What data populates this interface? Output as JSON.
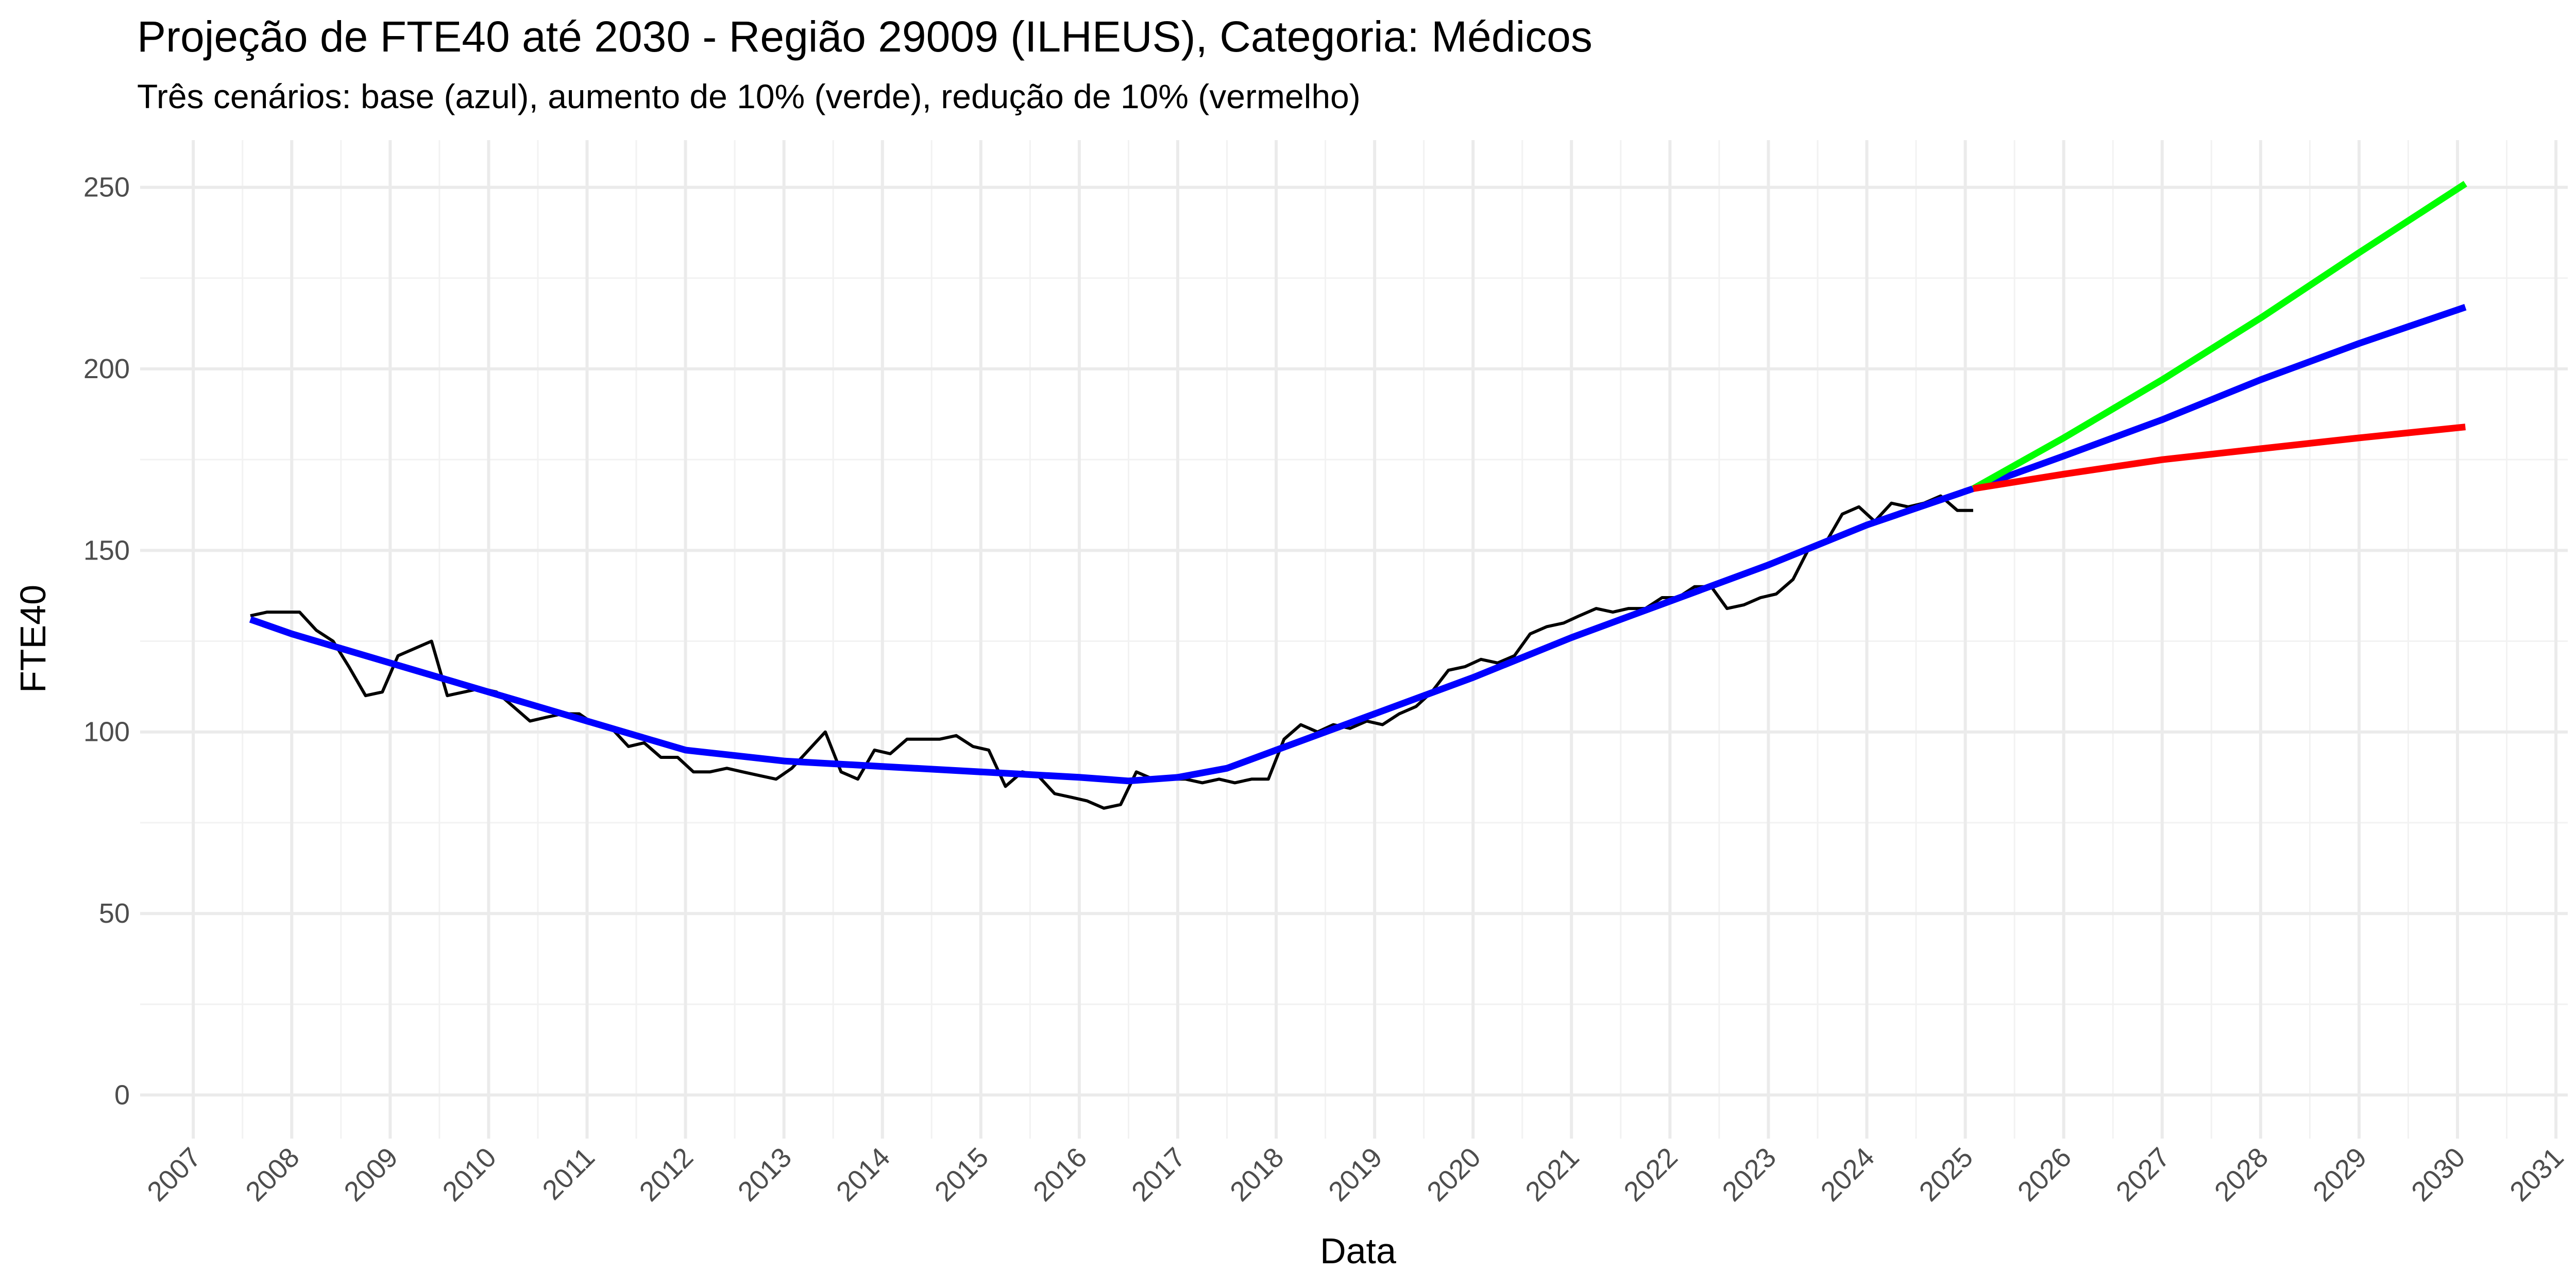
{
  "chart_data": {
    "type": "line",
    "title": "Projeção de FTE40 até 2030 - Região 29009 (ILHEUS), Categoria: Médicos",
    "subtitle": "Três cenários: base (azul), aumento de 10% (verde), redução de 10% (vermelho)",
    "xlabel": "Data",
    "ylabel": "FTE40",
    "xlim": [
      2006.46,
      2031.12
    ],
    "ylim": [
      -12,
      263
    ],
    "xticks": [
      2007,
      2008,
      2009,
      2010,
      2011,
      2012,
      2013,
      2014,
      2015,
      2016,
      2017,
      2018,
      2019,
      2020,
      2021,
      2022,
      2023,
      2024,
      2025,
      2026,
      2027,
      2028,
      2029,
      2030,
      2031
    ],
    "yticks": [
      0,
      50,
      100,
      150,
      200,
      250
    ],
    "grid": true,
    "series": [
      {
        "color": "#000000",
        "width": 6,
        "x": [
          2007.58,
          2007.75,
          2007.92,
          2008.08,
          2008.25,
          2008.42,
          2008.58,
          2008.75,
          2008.92,
          2009.08,
          2009.25,
          2009.42,
          2009.58,
          2009.75,
          2009.92,
          2010.08,
          2010.25,
          2010.42,
          2010.58,
          2010.75,
          2010.92,
          2011.08,
          2011.25,
          2011.42,
          2011.58,
          2011.75,
          2011.92,
          2012.08,
          2012.25,
          2012.42,
          2012.58,
          2012.75,
          2012.92,
          2013.08,
          2013.25,
          2013.42,
          2013.58,
          2013.75,
          2013.92,
          2014.08,
          2014.25,
          2014.42,
          2014.58,
          2014.75,
          2014.92,
          2015.08,
          2015.25,
          2015.42,
          2015.58,
          2015.75,
          2015.92,
          2016.08,
          2016.25,
          2016.42,
          2016.58,
          2016.75,
          2016.92,
          2017.08,
          2017.25,
          2017.42,
          2017.58,
          2017.75,
          2017.92,
          2018.08,
          2018.25,
          2018.42,
          2018.58,
          2018.75,
          2018.92,
          2019.08,
          2019.25,
          2019.42,
          2019.58,
          2019.75,
          2019.92,
          2020.08,
          2020.25,
          2020.42,
          2020.58,
          2020.75,
          2020.92,
          2021.08,
          2021.25,
          2021.42,
          2021.58,
          2021.75,
          2021.92,
          2022.08,
          2022.25,
          2022.42,
          2022.58,
          2022.75,
          2022.92,
          2023.08,
          2023.25,
          2023.42,
          2023.58,
          2023.75,
          2023.92,
          2024.08,
          2024.25,
          2024.42,
          2024.58,
          2024.75,
          2024.92,
          2025.08
        ],
        "values": [
          132,
          133,
          133,
          133,
          128,
          125,
          118,
          110,
          111,
          121,
          123,
          125,
          110,
          111,
          112,
          111,
          107,
          103,
          104,
          105,
          105,
          102,
          101,
          96,
          97,
          93,
          93,
          89,
          89,
          90,
          89,
          88,
          87,
          90,
          95,
          100,
          89,
          87,
          95,
          94,
          98,
          98,
          98,
          99,
          96,
          95,
          85,
          89,
          88,
          83,
          82,
          81,
          79,
          80,
          89,
          87,
          87,
          87,
          86,
          87,
          86,
          87,
          87,
          98,
          102,
          100,
          102,
          101,
          103,
          102,
          105,
          107,
          111,
          117,
          118,
          120,
          119,
          121,
          127,
          129,
          130,
          132,
          134,
          133,
          134,
          134,
          137,
          137,
          140,
          140,
          134,
          135,
          137,
          138,
          142,
          151,
          152,
          160,
          162,
          158,
          163,
          162,
          163,
          165,
          161,
          161
        ]
      },
      {
        "color": "#0000ff",
        "width": 13,
        "x": [
          2007.58,
          2008,
          2009,
          2010,
          2011,
          2012,
          2013,
          2014,
          2015,
          2016,
          2016.5,
          2017,
          2017.5,
          2018,
          2019,
          2020,
          2021,
          2022,
          2023,
          2024,
          2025.08,
          2026,
          2027,
          2028,
          2029,
          2030.08
        ],
        "values": [
          131,
          127,
          119,
          111,
          103,
          95,
          92,
          90.5,
          89,
          87.5,
          86.5,
          87.5,
          90,
          95,
          105,
          115,
          126,
          136,
          146,
          157,
          167,
          176,
          186,
          197,
          207,
          217
        ]
      },
      {
        "color": "#00ff00",
        "width": 13,
        "x": [
          2025.08,
          2026,
          2027,
          2028,
          2029,
          2030.08
        ],
        "values": [
          167,
          181,
          197,
          214,
          232,
          251
        ]
      },
      {
        "color": "#ff0000",
        "width": 13,
        "x": [
          2025.08,
          2026,
          2027,
          2028,
          2029,
          2030.08
        ],
        "values": [
          167,
          171,
          175,
          178,
          181,
          184
        ]
      }
    ]
  }
}
